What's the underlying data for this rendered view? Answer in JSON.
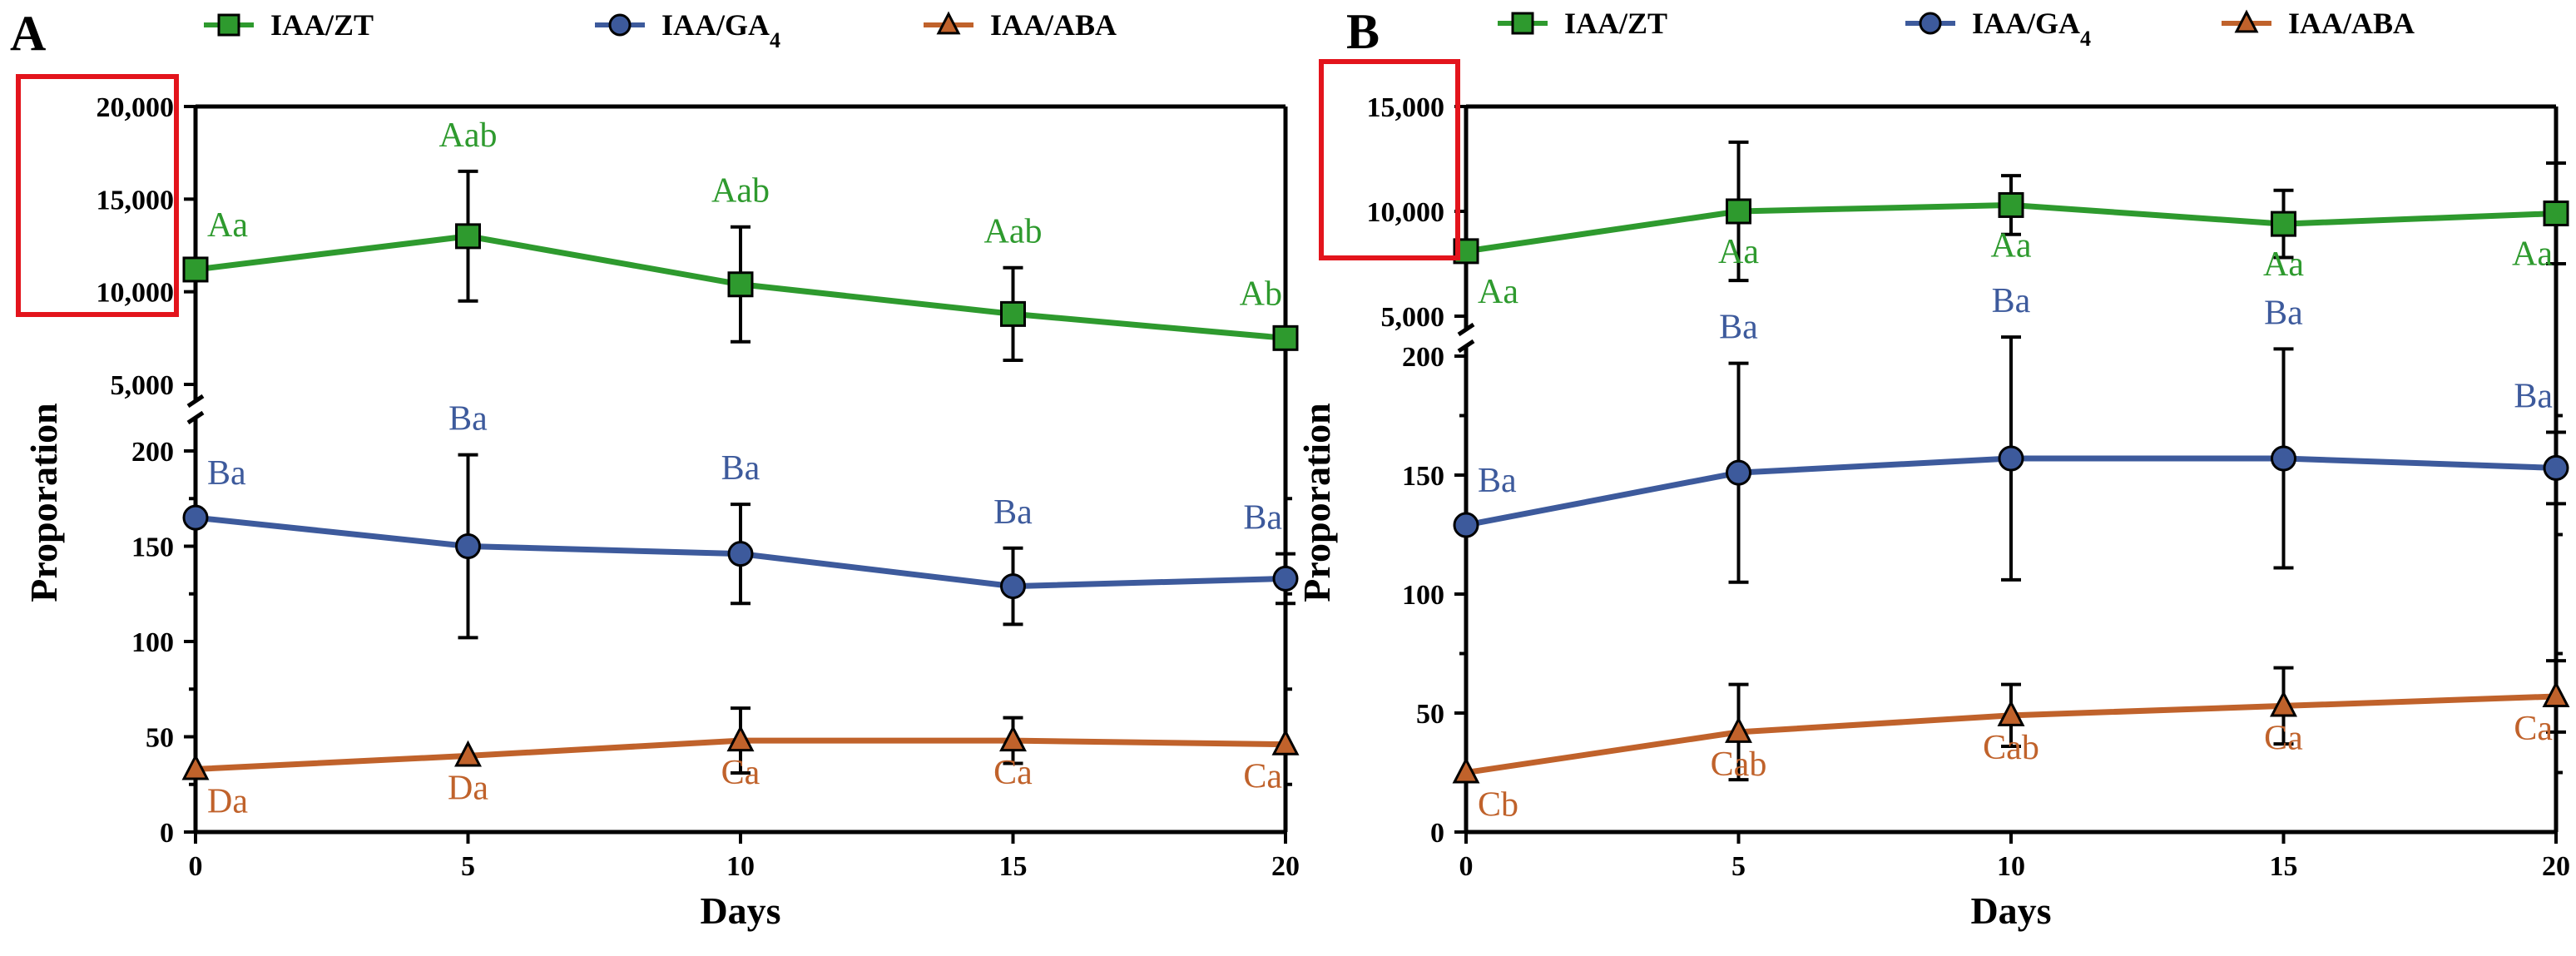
{
  "colors": {
    "zt": "#2e9a2e",
    "ga4": "#3d5a9c",
    "aba": "#c0622b",
    "highlight": "#e3141c",
    "axis": "#000000"
  },
  "legend": [
    {
      "label": "IAA/ZT",
      "marker": "square",
      "color": "#2e9a2e"
    },
    {
      "label": "IAA/GA",
      "subscript": "4",
      "marker": "circle",
      "color": "#3d5a9c"
    },
    {
      "label": "IAA/ABA",
      "marker": "triangle",
      "color": "#c0622b"
    }
  ],
  "chart_data": [
    {
      "panel": "A",
      "type": "line",
      "xlabel": "Days",
      "ylabel": "Proporation",
      "x": [
        0,
        5,
        10,
        15,
        20
      ],
      "xticks": [
        "0",
        "5",
        "10",
        "15",
        "20"
      ],
      "xlim": [
        0,
        20
      ],
      "y_axis_broken": true,
      "y_upper": {
        "ylim": [
          5000,
          20000
        ],
        "ticks": [
          "5,000",
          "10,000",
          "15,000",
          "20,000"
        ]
      },
      "y_lower": {
        "ylim": [
          0,
          200
        ],
        "ticks": [
          "0",
          "50",
          "100",
          "150",
          "200"
        ]
      },
      "highlight_box": "upper y-axis tick labels",
      "series": [
        {
          "name": "IAA/ZT",
          "segment": "upper",
          "values": [
            11200,
            13000,
            10400,
            8800,
            7500
          ],
          "errors": [
            0,
            3500,
            3100,
            2500,
            0
          ],
          "labels": [
            "Aa",
            "Aab",
            "Aab",
            "Aab",
            "Ab"
          ]
        },
        {
          "name": "IAA/GA4",
          "segment": "lower",
          "values": [
            165,
            150,
            146,
            129,
            133
          ],
          "errors": [
            0,
            48,
            26,
            20,
            13
          ],
          "labels": [
            "Ba",
            "Ba",
            "Ba",
            "Ba",
            "Ba"
          ]
        },
        {
          "name": "IAA/ABA",
          "segment": "lower",
          "values": [
            33,
            40,
            48,
            48,
            46
          ],
          "errors": [
            0,
            0,
            17,
            12,
            0
          ],
          "labels": [
            "Da",
            "Da",
            "Ca",
            "Ca",
            "Ca"
          ]
        }
      ]
    },
    {
      "panel": "B",
      "type": "line",
      "xlabel": "Days",
      "ylabel": "Proporation",
      "x": [
        0,
        5,
        10,
        15,
        20
      ],
      "xticks": [
        "0",
        "5",
        "10",
        "15",
        "20"
      ],
      "xlim": [
        0,
        20
      ],
      "y_axis_broken": true,
      "y_upper": {
        "ylim": [
          5000,
          15000
        ],
        "ticks": [
          "5,000",
          "10,000",
          "15,000"
        ]
      },
      "y_lower": {
        "ylim": [
          0,
          200
        ],
        "ticks": [
          "0",
          "50",
          "100",
          "150",
          "200"
        ]
      },
      "highlight_box": "upper y-axis tick labels",
      "series": [
        {
          "name": "IAA/ZT",
          "segment": "upper",
          "values": [
            8100,
            10000,
            10300,
            9400,
            9900
          ],
          "errors": [
            0,
            3300,
            1400,
            1600,
            2400
          ],
          "labels": [
            "Aa",
            "Aa",
            "Aa",
            "Aa",
            "Aa"
          ]
        },
        {
          "name": "IAA/GA4",
          "segment": "lower",
          "values": [
            129,
            151,
            157,
            157,
            153
          ],
          "errors": [
            0,
            46,
            51,
            46,
            15
          ],
          "labels": [
            "Ba",
            "Ba",
            "Ba",
            "Ba",
            "Ba"
          ]
        },
        {
          "name": "IAA/ABA",
          "segment": "lower",
          "values": [
            25,
            42,
            49,
            53,
            57
          ],
          "errors": [
            0,
            20,
            13,
            16,
            15
          ],
          "labels": [
            "Cb",
            "Cab",
            "Cab",
            "Ca",
            "Ca"
          ]
        }
      ]
    }
  ]
}
